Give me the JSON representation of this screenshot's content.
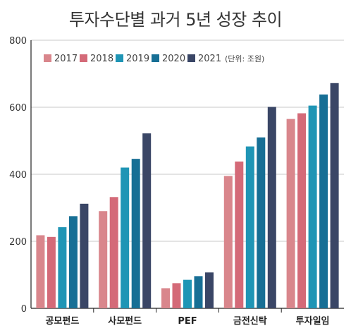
{
  "chart_data": {
    "type": "bar",
    "title": "투자수단별 과거 5년 성장 추이",
    "unit_note": "(단위: 조원)",
    "categories": [
      "공모펀드",
      "사모펀드",
      "PEF",
      "금전신탁",
      "투자일임"
    ],
    "series": [
      {
        "name": "2017",
        "color": "#d9868c",
        "values": [
          218,
          290,
          60,
          395,
          565
        ]
      },
      {
        "name": "2018",
        "color": "#d46a78",
        "values": [
          213,
          332,
          75,
          438,
          582
        ]
      },
      {
        "name": "2019",
        "color": "#1f95b5",
        "values": [
          242,
          420,
          85,
          483,
          605
        ]
      },
      {
        "name": "2020",
        "color": "#176f95",
        "values": [
          275,
          446,
          96,
          510,
          638
        ]
      },
      {
        "name": "2021",
        "color": "#3a4666",
        "values": [
          312,
          522,
          107,
          601,
          672
        ]
      }
    ],
    "y_ticks": [
      "0",
      "200",
      "400",
      "600",
      "800"
    ],
    "ylim": [
      0,
      800
    ],
    "grid": "horizontal",
    "legend_position": "top-left"
  }
}
